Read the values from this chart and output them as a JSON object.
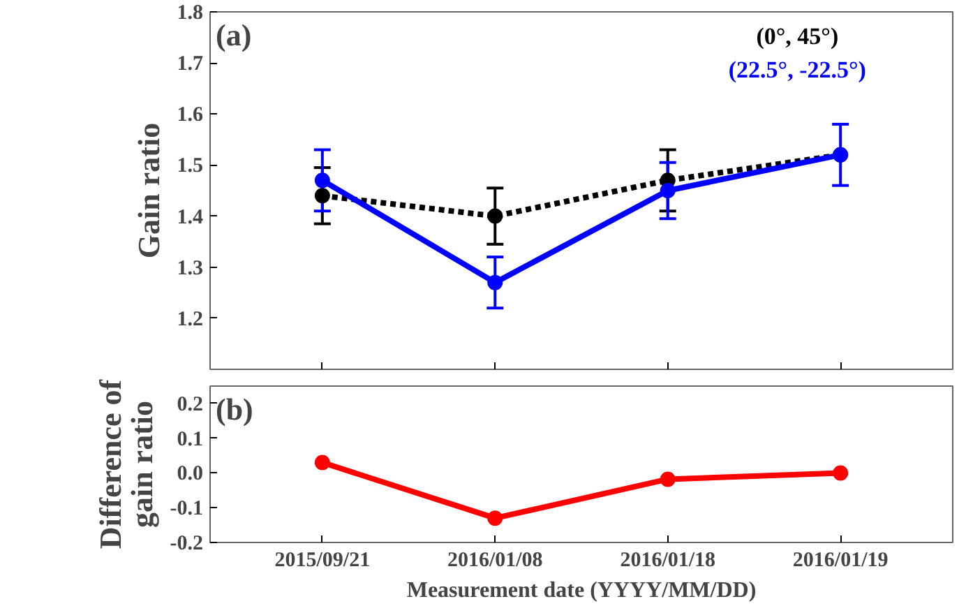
{
  "chart_data": [
    {
      "type": "line",
      "categories": [
        "2015/09/21",
        "2016/01/08",
        "2016/01/18",
        "2016/01/19"
      ],
      "ylabel": "Gain ratio",
      "ylim": [
        1.1,
        1.8
      ],
      "yticks": [
        1.2,
        1.3,
        1.4,
        1.5,
        1.6,
        1.7,
        1.8
      ],
      "tick_labels": "y",
      "grid": false,
      "legend": "top right",
      "marker": "circle",
      "annotations": [
        "(a)"
      ],
      "series": [
        {
          "name": "(0°, 45°)",
          "color": "#000000",
          "line_style": "dashed",
          "values": [
            1.44,
            1.4,
            1.47,
            1.52
          ],
          "errors": [
            0.055,
            0.055,
            0.06,
            null
          ]
        },
        {
          "name": "(22.5°, -22.5°)",
          "color": "#0000ff",
          "line_style": "solid",
          "values": [
            1.47,
            1.27,
            1.45,
            1.52
          ],
          "errors": [
            0.06,
            0.05,
            0.055,
            0.06
          ]
        }
      ]
    },
    {
      "type": "line",
      "categories": [
        "2015/09/21",
        "2016/01/08",
        "2016/01/18",
        "2016/01/19"
      ],
      "xlabel": "Measurement date (YYYY/MM/DD)",
      "ylabel": "Difference of\ngain ratio",
      "ylim": [
        -0.2,
        0.25
      ],
      "yticks": [
        {
          "value": -0.2,
          "label": "-0.2"
        },
        {
          "value": -0.1,
          "label": "-0.1"
        },
        {
          "value": 0,
          "label": "0.0"
        },
        {
          "value": 0.1,
          "label": "0.1"
        },
        {
          "value": 0.2,
          "label": "0.2"
        }
      ],
      "grid": false,
      "marker": "circle",
      "line_style": "solid",
      "annotations": [
        "(b)"
      ],
      "series": [
        {
          "color": "#ff0000",
          "values": [
            0.03,
            -0.13,
            -0.018,
            0.0
          ]
        }
      ]
    }
  ]
}
